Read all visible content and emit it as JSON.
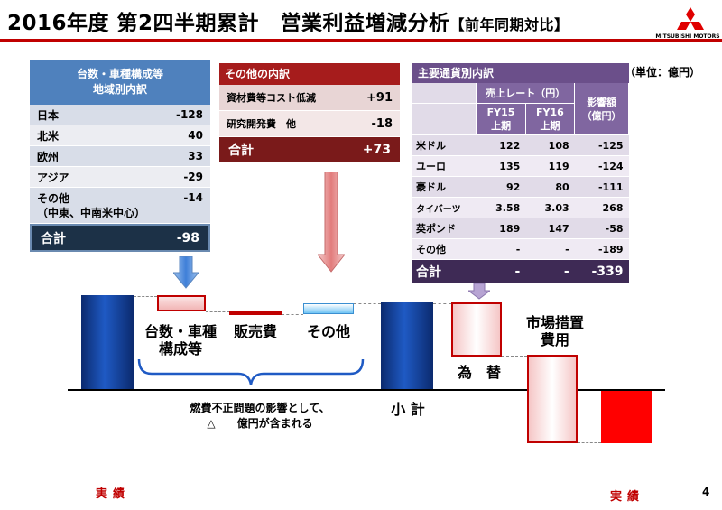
{
  "header": {
    "title": "2016年度 第2四半期累計　営業利益増減分析",
    "subtitle": "【前年同期対比】",
    "brand": "MITSUBISHI MOTORS",
    "unit": "（単位：億円）"
  },
  "region_table": {
    "header_line1": "台数・車種構成等",
    "header_line2": "地域別内訳",
    "rows": [
      {
        "label": "日本",
        "value": "-128"
      },
      {
        "label": "北米",
        "value": "40"
      },
      {
        "label": "欧州",
        "value": "33"
      },
      {
        "label": "アジア",
        "value": "-29"
      },
      {
        "label": "その他",
        "label2": "（中東、中南米中心）",
        "value": "-14"
      }
    ],
    "total_label": "合計",
    "total_value": "-98"
  },
  "other_table": {
    "header": "その他の内訳",
    "rows": [
      {
        "label": "資材費等コスト低減",
        "value": "+91"
      },
      {
        "label": "研究開発費　他",
        "value": "-18"
      }
    ],
    "total_label": "合計",
    "total_value": "+73"
  },
  "currency_table": {
    "header": "主要通貨別内訳",
    "col_rate": "売上レート（円）",
    "col_impact": "影響額（億円）",
    "col_fy15": "FY15 上期",
    "col_fy16": "FY16 上期",
    "rows": [
      {
        "label": "米ドル",
        "fy15": "122",
        "fy16": "108",
        "impact": "-125"
      },
      {
        "label": "ユーロ",
        "fy15": "135",
        "fy16": "119",
        "impact": "-124"
      },
      {
        "label": "豪ドル",
        "fy15": "92",
        "fy16": "80",
        "impact": "-111"
      },
      {
        "label": "タイバーツ",
        "fy15": "3.58",
        "fy16": "3.03",
        "impact": "268"
      },
      {
        "label": "英ポンド",
        "fy15": "189",
        "fy16": "147",
        "impact": "-58"
      },
      {
        "label": "その他",
        "fy15": "-",
        "fy16": "-",
        "impact": "-189"
      }
    ],
    "total_label": "合計",
    "total_fy15": "-",
    "total_fy16": "-",
    "total_impact": "-339"
  },
  "waterfall": {
    "label_volume_1": "台数・車種",
    "label_volume_2": "構成等",
    "label_sales": "販売費",
    "label_other": "その他",
    "label_subtotal": "小 計",
    "label_fx": "為　替",
    "label_market_1": "市場措置",
    "label_market_2": "費用",
    "note_line1": "燃費不正問題の影響として、",
    "note_line2": "△　　億円が含まれる",
    "footer_left": "実績",
    "footer_right": "実績"
  },
  "page_number": "4",
  "colors": {
    "accent": "#c00000",
    "region": "#4f81bd",
    "other": "#a61c1c",
    "currency": "#6b4f8a"
  }
}
